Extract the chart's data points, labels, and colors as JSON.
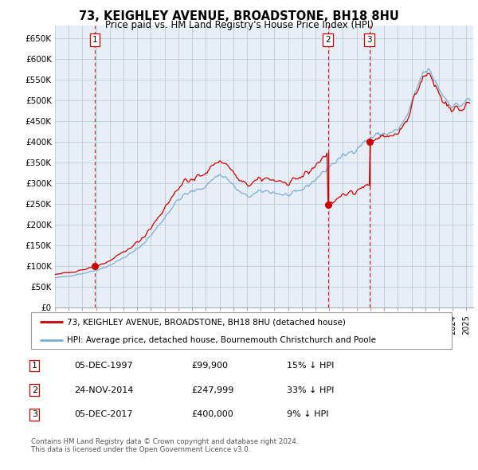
{
  "title": "73, KEIGHLEY AVENUE, BROADSTONE, BH18 8HU",
  "subtitle": "Price paid vs. HM Land Registry's House Price Index (HPI)",
  "yticks": [
    0,
    50000,
    100000,
    150000,
    200000,
    250000,
    300000,
    350000,
    400000,
    450000,
    500000,
    550000,
    600000,
    650000
  ],
  "ytick_labels": [
    "£0",
    "£50K",
    "£100K",
    "£150K",
    "£200K",
    "£250K",
    "£300K",
    "£350K",
    "£400K",
    "£450K",
    "£500K",
    "£550K",
    "£600K",
    "£650K"
  ],
  "ylim": [
    0,
    680000
  ],
  "xlim_left": 1995.0,
  "xlim_right": 2025.5,
  "sale_dates_num": [
    1997.92,
    2014.9,
    2017.92
  ],
  "sale_prices": [
    99900,
    247999,
    400000
  ],
  "sale_labels": [
    "1",
    "2",
    "3"
  ],
  "legend_sale": "73, KEIGHLEY AVENUE, BROADSTONE, BH18 8HU (detached house)",
  "legend_hpi": "HPI: Average price, detached house, Bournemouth Christchurch and Poole",
  "table_rows": [
    [
      "1",
      "05-DEC-1997",
      "£99,900",
      "15% ↓ HPI"
    ],
    [
      "2",
      "24-NOV-2014",
      "£247,999",
      "33% ↓ HPI"
    ],
    [
      "3",
      "05-DEC-2017",
      "£400,000",
      "9% ↓ HPI"
    ]
  ],
  "footnote1": "Contains HM Land Registry data © Crown copyright and database right 2024.",
  "footnote2": "This data is licensed under the Open Government Licence v3.0.",
  "sale_color": "#cc0000",
  "hpi_color": "#7aadd4",
  "vline_color": "#cc0000",
  "grid_color": "#bbccdd",
  "chart_bg": "#e8eef5",
  "background_color": "#ffffff",
  "legend_border_color": "#999999",
  "hpi_data": {
    "years": [
      1995,
      1996,
      1997,
      1998,
      1999,
      2000,
      2001,
      2002,
      2003,
      2004,
      2005,
      2006,
      2007,
      2008,
      2009,
      2010,
      2011,
      2012,
      2013,
      2014,
      2015,
      2016,
      2017,
      2018,
      2019,
      2020,
      2021,
      2022,
      2023,
      2024,
      2025
    ],
    "values": [
      72000,
      77000,
      83000,
      91000,
      103000,
      121000,
      142000,
      175000,
      218000,
      260000,
      280000,
      295000,
      320000,
      295000,
      270000,
      280000,
      278000,
      272000,
      285000,
      310000,
      340000,
      365000,
      385000,
      410000,
      420000,
      430000,
      490000,
      570000,
      530000,
      490000,
      500000
    ]
  }
}
